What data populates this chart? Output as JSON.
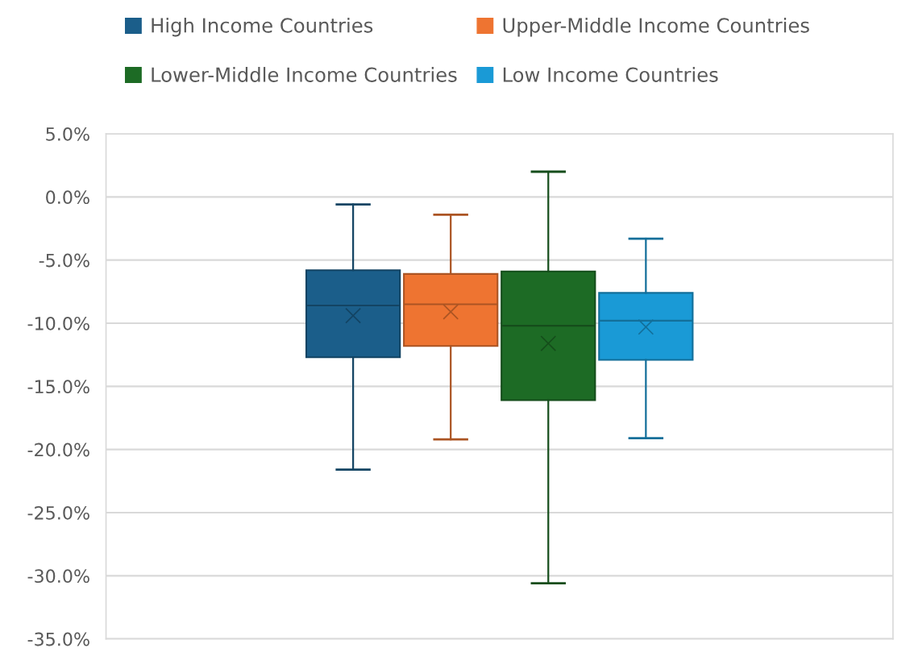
{
  "chart_data": {
    "type": "box",
    "categories": [
      null
    ],
    "series": [
      {
        "name": "High Income Countries",
        "color": "#1b5e8a",
        "boxes": [
          {
            "low": -21.6,
            "q1": -12.7,
            "median": -8.6,
            "q3": -5.8,
            "high": -0.6,
            "mean": -9.4
          }
        ]
      },
      {
        "name": "Upper-Middle Income Countries",
        "color": "#ee7431",
        "boxes": [
          {
            "low": -19.2,
            "q1": -11.8,
            "median": -8.5,
            "q3": -6.1,
            "high": -1.4,
            "mean": -9.1
          }
        ]
      },
      {
        "name": "Lower-Middle Income Countries",
        "color": "#1d6b25",
        "boxes": [
          {
            "low": -30.6,
            "q1": -16.1,
            "median": -10.2,
            "q3": -5.9,
            "high": 2.0,
            "mean": -11.6
          }
        ]
      },
      {
        "name": "Low Income Countries",
        "color": "#1a9ad6",
        "boxes": [
          {
            "low": -19.1,
            "q1": -12.9,
            "median": -9.8,
            "q3": -7.6,
            "high": -3.3,
            "mean": -10.3
          }
        ]
      }
    ],
    "ylim": [
      -35,
      5
    ],
    "yticks": [
      {
        "value": 5,
        "label": "5.0%"
      },
      {
        "value": 0,
        "label": "0.0%"
      },
      {
        "value": -5,
        "label": "-5.0%"
      },
      {
        "value": -10,
        "label": "-10.0%"
      },
      {
        "value": -15,
        "label": "-15.0%"
      },
      {
        "value": -20,
        "label": "-20.0%"
      },
      {
        "value": -25,
        "label": "-25.0%"
      },
      {
        "value": -30,
        "label": "-30.0%"
      },
      {
        "value": -35,
        "label": "-35.0%"
      }
    ],
    "grid": "y",
    "legend": "top",
    "tick_labels": "y"
  }
}
